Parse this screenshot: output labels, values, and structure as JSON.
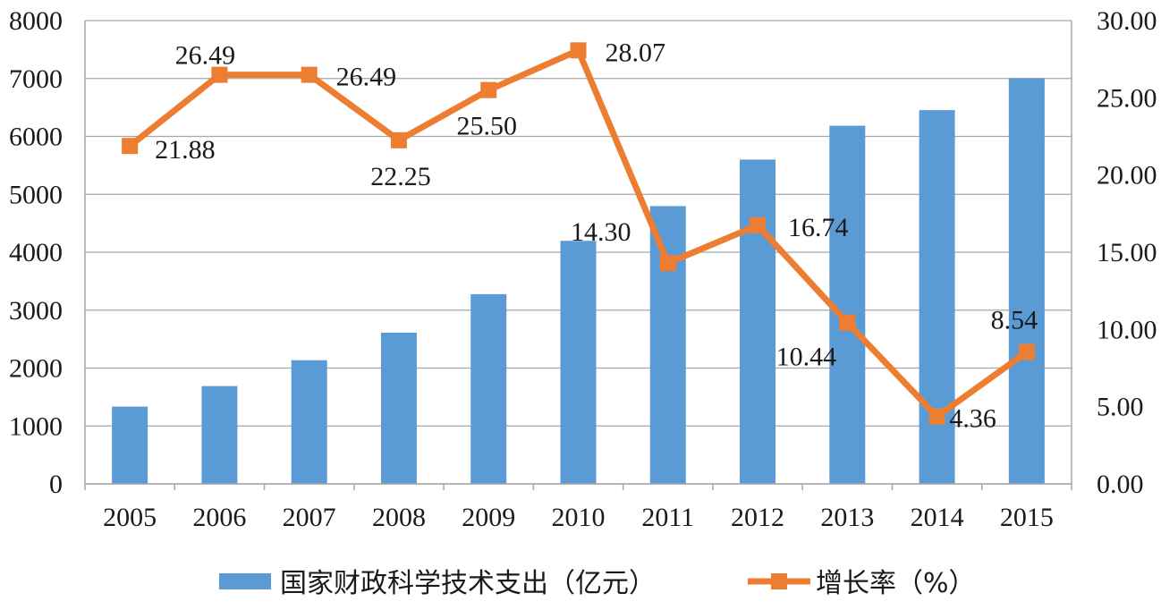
{
  "chart_data": {
    "type": "bar",
    "categories": [
      "2005",
      "2006",
      "2007",
      "2008",
      "2009",
      "2010",
      "2011",
      "2012",
      "2013",
      "2014",
      "2015"
    ],
    "series": [
      {
        "name": "国家财政科学技术支出（亿元）",
        "type": "bar",
        "axis": "left",
        "color": "#5B9BD5",
        "values": [
          1335,
          1689,
          2135,
          2611,
          3276,
          4197,
          4797,
          5600,
          6184,
          6454,
          7005
        ]
      },
      {
        "name": "增长率（%）",
        "type": "line",
        "axis": "right",
        "color": "#ED7D31",
        "marker": "square",
        "values": [
          21.88,
          26.49,
          26.49,
          22.25,
          25.5,
          28.07,
          14.3,
          16.74,
          10.44,
          4.36,
          8.54
        ],
        "labels": [
          "21.88",
          "26.49",
          "26.49",
          "22.25",
          "25.50",
          "28.07",
          "14.30",
          "16.74",
          "10.44",
          "4.36",
          "8.54"
        ]
      }
    ],
    "y_left": {
      "ylim": [
        0,
        8000
      ],
      "ticks": [
        "0",
        "1000",
        "2000",
        "3000",
        "4000",
        "5000",
        "6000",
        "7000",
        "8000"
      ]
    },
    "y_right": {
      "ylim": [
        0,
        30
      ],
      "ticks": [
        "0.00",
        "5.00",
        "10.00",
        "15.00",
        "20.00",
        "25.00",
        "30.00"
      ]
    },
    "grid": true,
    "legend_position": "bottom"
  }
}
